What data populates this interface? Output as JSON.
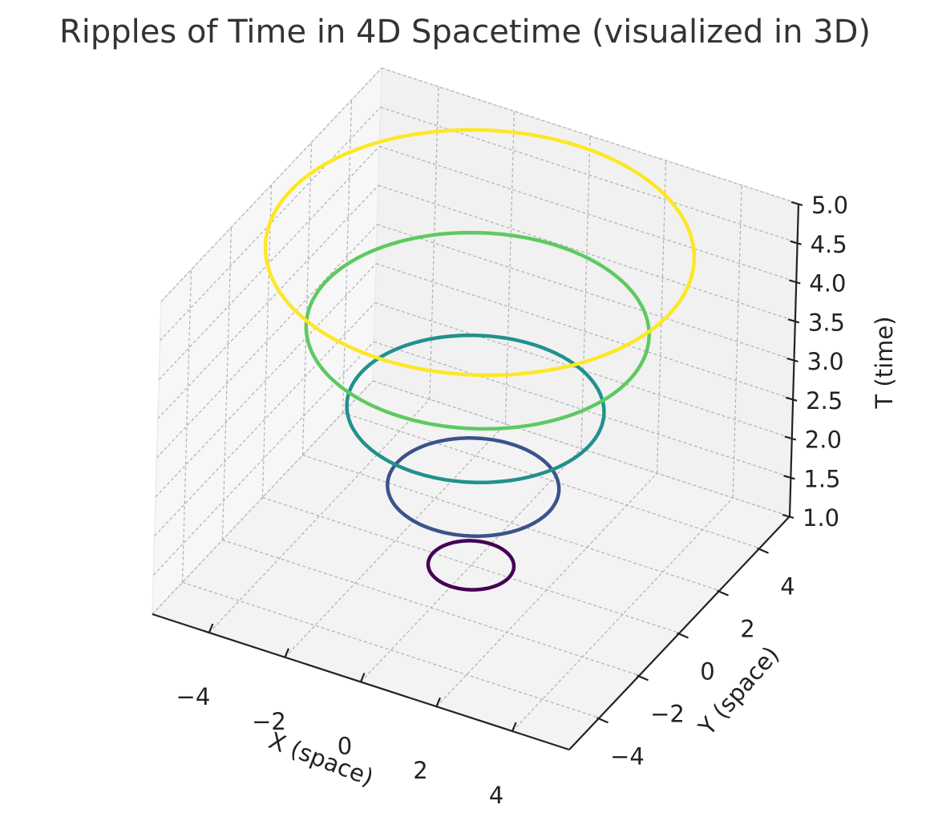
{
  "chart_data": {
    "type": "line",
    "projection": "3d",
    "title": "Ripples of Time in 4D Spacetime (visualized in 3D)",
    "xlabel": "X (space)",
    "ylabel": "Y (space)",
    "zlabel": "T (time)",
    "xlim": [
      -5.5,
      5.5
    ],
    "ylim": [
      -5.5,
      5.5
    ],
    "zlim": [
      1.0,
      5.0
    ],
    "xticks": [
      "−4",
      "−2",
      "0",
      "2",
      "4"
    ],
    "yticks": [
      "−4",
      "−2",
      "0",
      "2",
      "4"
    ],
    "zticks": [
      "1.0",
      "1.5",
      "2.0",
      "2.5",
      "3.0",
      "3.5",
      "4.0",
      "4.5",
      "5.0"
    ],
    "grid": true,
    "colormap": "viridis",
    "series": [
      {
        "shape": "circle",
        "center": [
          0,
          0
        ],
        "radius": 1,
        "t": 1,
        "color": "#440154"
      },
      {
        "shape": "circle",
        "center": [
          0,
          0
        ],
        "radius": 2,
        "t": 2,
        "color": "#3b528b"
      },
      {
        "shape": "circle",
        "center": [
          0,
          0
        ],
        "radius": 3,
        "t": 3,
        "color": "#21918c"
      },
      {
        "shape": "circle",
        "center": [
          0,
          0
        ],
        "radius": 4,
        "t": 4,
        "color": "#5ec962"
      },
      {
        "shape": "circle",
        "center": [
          0,
          0
        ],
        "radius": 5,
        "t": 5,
        "color": "#fde725"
      }
    ]
  }
}
